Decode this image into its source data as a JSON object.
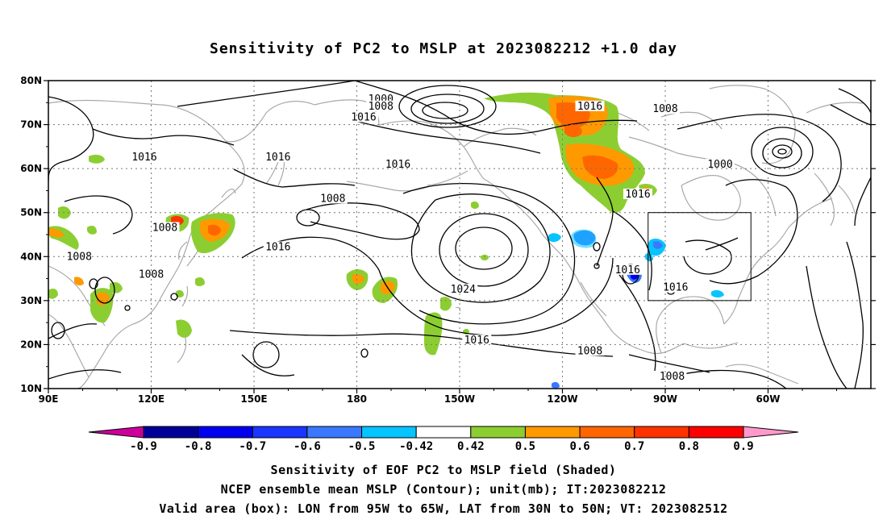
{
  "title": "Sensitivity of PC2 to MSLP at 2023082212 +1.0 day",
  "map": {
    "lat_labels": [
      "80N",
      "70N",
      "60N",
      "50N",
      "40N",
      "30N",
      "20N",
      "10N"
    ],
    "lon_labels": [
      "90E",
      "120E",
      "150E",
      "180",
      "150W",
      "120W",
      "90W",
      "60W"
    ],
    "valid_box": {
      "lon_west": -95,
      "lon_east": -65,
      "lat_south": 30,
      "lat_north": 50
    },
    "contour_labels": [
      {
        "text": "1000",
        "lon": -173,
        "lat": 75.4
      },
      {
        "text": "1008",
        "lon": -173,
        "lat": 73.8
      },
      {
        "text": "1016",
        "lon": -178,
        "lat": 71.3
      },
      {
        "text": "1016",
        "lon": -112,
        "lat": 73.8
      },
      {
        "text": "1008",
        "lon": -90,
        "lat": 73.2
      },
      {
        "text": "1016",
        "lon": 118,
        "lat": 62.2
      },
      {
        "text": "1016",
        "lon": 157,
        "lat": 62.2
      },
      {
        "text": "1016",
        "lon": -168,
        "lat": 60.6
      },
      {
        "text": "1000",
        "lon": -74,
        "lat": 60.6
      },
      {
        "text": "1008",
        "lon": 173,
        "lat": 52.8
      },
      {
        "text": "1016",
        "lon": -98,
        "lat": 53.8
      },
      {
        "text": "1008",
        "lon": 124,
        "lat": 46.2
      },
      {
        "text": "1016",
        "lon": 157,
        "lat": 41.8
      },
      {
        "text": "1008",
        "lon": 99,
        "lat": 39.6
      },
      {
        "text": "1008",
        "lon": 120,
        "lat": 35.6
      },
      {
        "text": "1016",
        "lon": -101,
        "lat": 36.6
      },
      {
        "text": "1016",
        "lon": -87,
        "lat": 32.6
      },
      {
        "text": "1024",
        "lon": -149,
        "lat": 32.2
      },
      {
        "text": "1016",
        "lon": -145,
        "lat": 20.6
      },
      {
        "text": "1008",
        "lon": -112,
        "lat": 18.2
      },
      {
        "text": "1008",
        "lon": -88,
        "lat": 12.4
      }
    ]
  },
  "colorbar": {
    "labels": [
      "-0.9",
      "-0.8",
      "-0.7",
      "-0.6",
      "-0.5",
      "-0.42",
      "0.42",
      "0.5",
      "0.6",
      "0.7",
      "0.8",
      "0.9"
    ],
    "colors": [
      "#000099",
      "#0000ee",
      "#1a35ff",
      "#3a78ff",
      "#05c4ff",
      "#ffffff",
      "#8cce32",
      "#ff9900",
      "#ff6600",
      "#ff3300",
      "#ff0000"
    ],
    "low_cap_color": "#cc0099",
    "high_cap_color": "#ff99cc"
  },
  "captions": [
    "Sensitivity of EOF PC2 to MSLP field (Shaded)",
    "NCEP ensemble mean MSLP (Contour); unit(mb); IT:2023082212",
    "Valid area (box): LON from 95W to 65W, LAT from 30N to 50N; VT: 2023082512"
  ]
}
